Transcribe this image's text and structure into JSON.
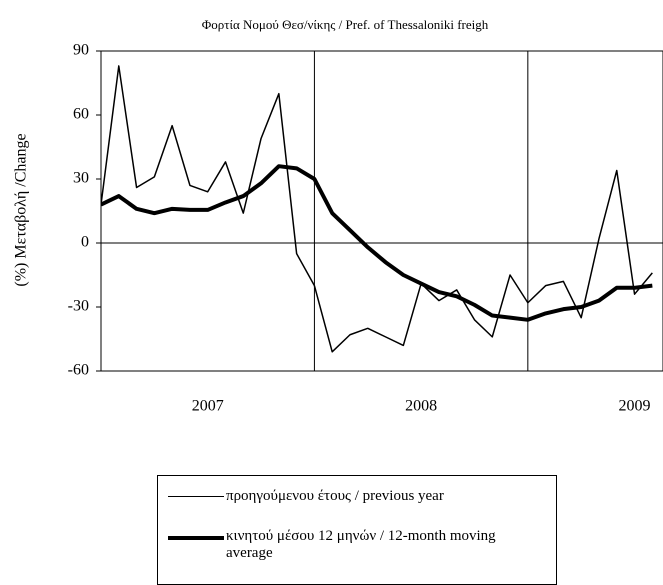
{
  "chart_data": {
    "type": "line",
    "title": "Φορτία Νομού Θεσ/νίκης  / Pref. of  Thessaloniki  freigh",
    "y_label": "(%) Μεταβολή /Change",
    "x": [
      0,
      1,
      2,
      3,
      4,
      5,
      6,
      7,
      8,
      9,
      10,
      11,
      12,
      13,
      14,
      15,
      16,
      17,
      18,
      19,
      20,
      21,
      22,
      23,
      24,
      25,
      26,
      27,
      28,
      29,
      30,
      31
    ],
    "series": [
      {
        "name": "προηγούμενου έτους / previous year",
        "color": "#000000",
        "width": 1.5,
        "values": [
          18,
          83,
          26,
          31,
          55,
          27,
          24,
          38,
          14,
          49,
          70,
          -5,
          -20,
          -51,
          -43,
          -40,
          -44,
          -48,
          -19,
          -27,
          -22,
          -36,
          -44,
          -15,
          -28,
          -20,
          -18,
          -35,
          2,
          34,
          -24,
          -14
        ]
      },
      {
        "name": "κινητού μέσου 12 μηνών / 12-month moving average",
        "color": "#000000",
        "width": 4,
        "values": [
          18,
          22,
          16,
          14,
          16,
          15.5,
          15.5,
          19,
          22,
          28,
          36,
          35,
          30,
          14,
          6,
          -2,
          -9,
          -15,
          -19,
          -23,
          -25,
          -29,
          -34,
          -35,
          -36,
          -33,
          -31,
          -30,
          -27,
          -21,
          -21,
          -20
        ]
      }
    ],
    "xlim": [
      0,
      31.6
    ],
    "xticks": [
      {
        "value": 6,
        "label": "2007"
      },
      {
        "value": 18,
        "label": "2008"
      },
      {
        "value": 30,
        "label": "2009"
      }
    ],
    "xgrid": [
      12,
      24
    ],
    "ylim": [
      -60,
      90
    ],
    "yticks": [
      -60,
      -30,
      0,
      30,
      60,
      90
    ],
    "zero_line": true
  }
}
